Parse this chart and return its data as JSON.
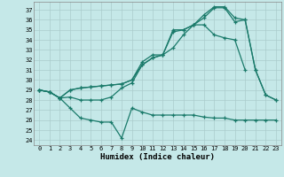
{
  "xlabel": "Humidex (Indice chaleur)",
  "bg_color": "#c5e8e8",
  "line_color": "#1a7a6a",
  "grid_color": "#aacccc",
  "xlim": [
    -0.5,
    23.5
  ],
  "ylim": [
    23.5,
    37.8
  ],
  "yticks": [
    24,
    25,
    26,
    27,
    28,
    29,
    30,
    31,
    32,
    33,
    34,
    35,
    36,
    37
  ],
  "xticks": [
    0,
    1,
    2,
    3,
    4,
    5,
    6,
    7,
    8,
    9,
    10,
    11,
    12,
    13,
    14,
    15,
    16,
    17,
    18,
    19,
    20,
    21,
    22,
    23
  ],
  "line1": [
    29.0,
    28.8,
    28.2,
    29.0,
    29.2,
    29.3,
    29.4,
    29.5,
    29.6,
    30.0,
    31.8,
    32.5,
    32.5,
    34.8,
    35.0,
    35.5,
    36.5,
    37.3,
    37.3,
    36.2,
    36.0,
    31.0,
    28.5,
    28.0
  ],
  "line2": [
    29.0,
    28.8,
    28.2,
    29.0,
    29.2,
    29.3,
    29.4,
    29.5,
    29.6,
    30.0,
    31.5,
    32.2,
    32.5,
    35.0,
    35.0,
    35.5,
    36.2,
    37.2,
    37.2,
    35.8,
    36.0,
    31.0,
    28.5,
    28.0
  ],
  "line3": [
    29.0,
    28.8,
    28.2,
    28.3,
    28.0,
    28.0,
    28.0,
    28.3,
    29.2,
    29.7,
    31.5,
    32.2,
    32.5,
    33.2,
    34.5,
    35.5,
    35.5,
    34.5,
    34.2,
    34.0,
    31.0,
    null,
    null,
    null
  ],
  "line4": [
    29.0,
    28.8,
    28.2,
    27.2,
    26.2,
    26.0,
    25.8,
    25.8,
    24.2,
    27.2,
    26.8,
    26.5,
    26.5,
    26.5,
    26.5,
    26.5,
    26.3,
    26.2,
    26.2,
    26.0,
    26.0,
    26.0,
    26.0,
    26.0
  ]
}
